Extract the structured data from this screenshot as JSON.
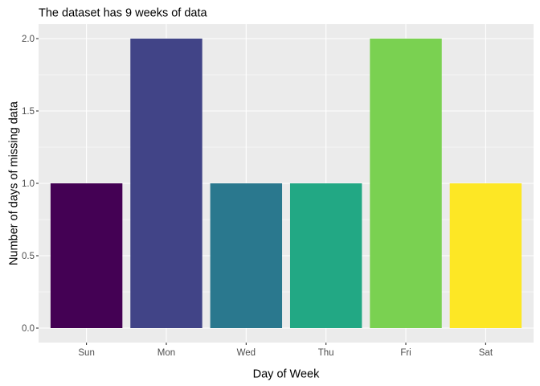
{
  "chart_data": {
    "type": "bar",
    "title": "The dataset has  9  weeks of data",
    "xlabel": "Day of Week",
    "ylabel": "Number of days of missing data",
    "categories": [
      "Sun",
      "Mon",
      "Wed",
      "Thu",
      "Fri",
      "Sat"
    ],
    "values": [
      1,
      2,
      1,
      1,
      2,
      1
    ],
    "colors": [
      "#440154",
      "#414487",
      "#2A788E",
      "#22A884",
      "#7AD151",
      "#FDE725"
    ],
    "ylim": [
      -0.1,
      2.1
    ],
    "yticks": [
      0,
      0.5,
      1,
      1.5,
      2
    ],
    "ytick_labels": [
      "0.0",
      "0.5",
      "1.0",
      "1.5",
      "2.0"
    ],
    "grid": true,
    "legend": "none",
    "panel_background": "#EBEBEB",
    "grid_color": "#FFFFFF"
  }
}
